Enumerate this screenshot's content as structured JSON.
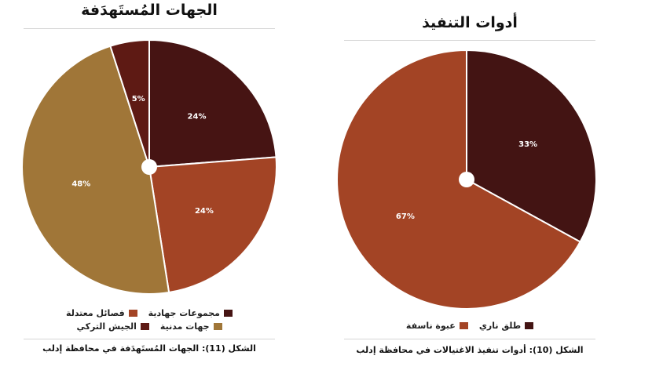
{
  "chart_data": [
    {
      "type": "pie",
      "title": "الجهات المُستَهدَفة",
      "caption": "الشكل (11): الجهات المُستَهدَفة في محافظة إدلب",
      "slices": [
        {
          "label": "مجموعات جهادية",
          "value": 24,
          "display": "24%",
          "color": "#461413"
        },
        {
          "label": "فصائل معتدلة",
          "value": 24,
          "display": "24%",
          "color": "#a34425"
        },
        {
          "label": "جهات مدنية",
          "value": 48,
          "display": "48%",
          "color": "#a07638"
        },
        {
          "label": "الجيش التركي",
          "value": 5,
          "display": "5%",
          "color": "#5e1a14"
        }
      ]
    },
    {
      "type": "pie",
      "title": "أدوات التنفيذ",
      "caption": "الشكل (10): أدوات تنفيذ الاغتيالات في محافظة إدلب",
      "slices": [
        {
          "label": "طلق ناري",
          "value": 33,
          "display": "33%",
          "color": "#431413"
        },
        {
          "label": "عبوة ناسفة",
          "value": 67,
          "display": "67%",
          "color": "#a34425"
        }
      ]
    }
  ]
}
